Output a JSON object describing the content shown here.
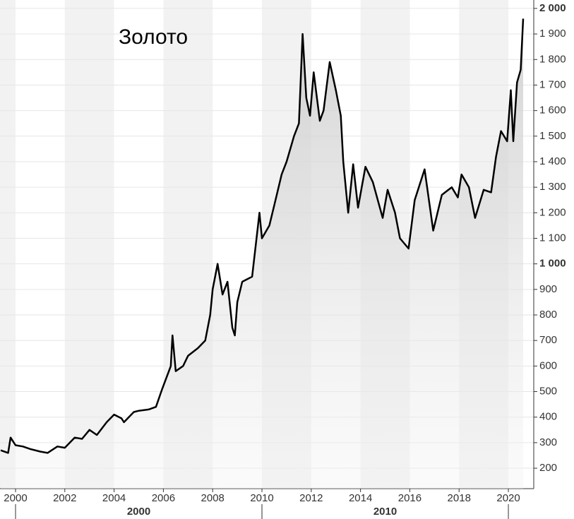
{
  "chart_data": {
    "type": "line",
    "title": "Золото",
    "x": [
      1999.4,
      1999.7,
      1999.8,
      2000.0,
      2000.3,
      2000.6,
      2001.0,
      2001.3,
      2001.7,
      2002.0,
      2002.4,
      2002.7,
      2003.0,
      2003.3,
      2003.7,
      2004.0,
      2004.3,
      2004.4,
      2004.8,
      2005.0,
      2005.4,
      2005.7,
      2005.95,
      2006.3,
      2006.37,
      2006.5,
      2006.8,
      2007.0,
      2007.4,
      2007.7,
      2007.9,
      2008.0,
      2008.2,
      2008.4,
      2008.6,
      2008.8,
      2008.9,
      2009.0,
      2009.2,
      2009.4,
      2009.6,
      2009.9,
      2010.0,
      2010.3,
      2010.5,
      2010.8,
      2011.0,
      2011.3,
      2011.5,
      2011.65,
      2011.8,
      2011.95,
      2012.1,
      2012.35,
      2012.5,
      2012.75,
      2013.0,
      2013.2,
      2013.3,
      2013.5,
      2013.7,
      2013.9,
      2014.2,
      2014.5,
      2014.9,
      2015.1,
      2015.4,
      2015.6,
      2015.95,
      2016.2,
      2016.6,
      2016.95,
      2017.3,
      2017.7,
      2017.95,
      2018.1,
      2018.4,
      2018.65,
      2019.0,
      2019.3,
      2019.5,
      2019.7,
      2019.95,
      2020.1,
      2020.2,
      2020.35,
      2020.5,
      2020.6
    ],
    "series": [
      {
        "name": "Золото",
        "color": "#000000",
        "values": [
          270,
          260,
          320,
          290,
          285,
          275,
          265,
          260,
          285,
          280,
          320,
          315,
          350,
          330,
          380,
          410,
          395,
          380,
          420,
          425,
          430,
          440,
          510,
          600,
          720,
          580,
          600,
          640,
          670,
          700,
          800,
          900,
          1000,
          880,
          930,
          750,
          720,
          850,
          930,
          940,
          950,
          1200,
          1100,
          1150,
          1230,
          1350,
          1400,
          1500,
          1550,
          1900,
          1650,
          1580,
          1750,
          1560,
          1600,
          1790,
          1680,
          1580,
          1400,
          1200,
          1390,
          1220,
          1380,
          1320,
          1180,
          1290,
          1200,
          1100,
          1060,
          1250,
          1370,
          1130,
          1270,
          1300,
          1260,
          1350,
          1300,
          1180,
          1290,
          1280,
          1420,
          1520,
          1480,
          1680,
          1480,
          1710,
          1760,
          1960
        ]
      }
    ],
    "xlim": [
      1999.37,
      2021.03
    ],
    "xticks": [
      2000,
      2002,
      2004,
      2006,
      2008,
      2010,
      2012,
      2014,
      2016,
      2018,
      2020
    ],
    "x_periods": [
      {
        "label": "2000",
        "start": 2000,
        "end": 2010
      },
      {
        "label": "2010",
        "start": 2010,
        "end": 2020
      }
    ],
    "ylim": [
      120,
      2033
    ],
    "yticks": [
      200,
      300,
      400,
      500,
      600,
      700,
      800,
      900,
      {
        "value": 1000,
        "label": "1 000"
      },
      {
        "value": 1100,
        "label": "1 100"
      },
      {
        "value": 1200,
        "label": "1 200"
      },
      {
        "value": 1300,
        "label": "1 300"
      },
      {
        "value": 1400,
        "label": "1 400"
      },
      {
        "value": 1500,
        "label": "1 500"
      },
      {
        "value": 1600,
        "label": "1 600"
      },
      {
        "value": 1700,
        "label": "1 700"
      },
      {
        "value": 1800,
        "label": "1 800"
      },
      {
        "value": 1900,
        "label": "1 900"
      },
      {
        "value": 2000,
        "label": "2 000"
      }
    ],
    "grid": true
  }
}
